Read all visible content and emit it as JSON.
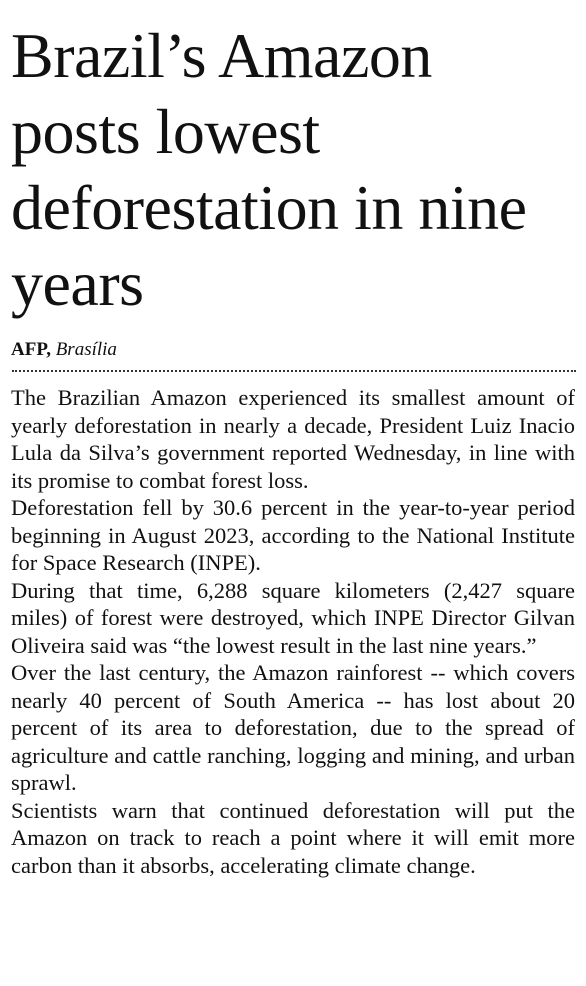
{
  "article": {
    "headline": "Brazil’s Amazon posts lowest deforestation in nine years",
    "byline": {
      "agency": "AFP,",
      "location": "Brasília"
    },
    "paragraphs": [
      "The Brazilian Amazon experienced its smallest amount of yearly deforestation in nearly a decade, President Luiz Inacio Lula da Silva’s government reported Wednesday, in line with its promise to combat forest loss.",
      "Deforestation fell by 30.6 percent in the year-to-year period beginning in August 2023, according to the National Institute for Space Research (INPE).",
      "During that time, 6,288 square kilometers (2,427 square miles) of forest were destroyed, which INPE Director Gilvan Oliveira said was “the lowest result in the last nine years.”",
      "Over the last century, the Amazon rainforest -- which covers nearly 40 percent of South America -- has lost about 20 percent of its area to deforestation, due to the spread of agriculture and cattle ranching, logging and mining, and urban sprawl.",
      "Scientists warn that continued deforestation will put the Amazon on track to reach a point where it will emit more carbon than it absorbs, accelerating climate change."
    ]
  }
}
